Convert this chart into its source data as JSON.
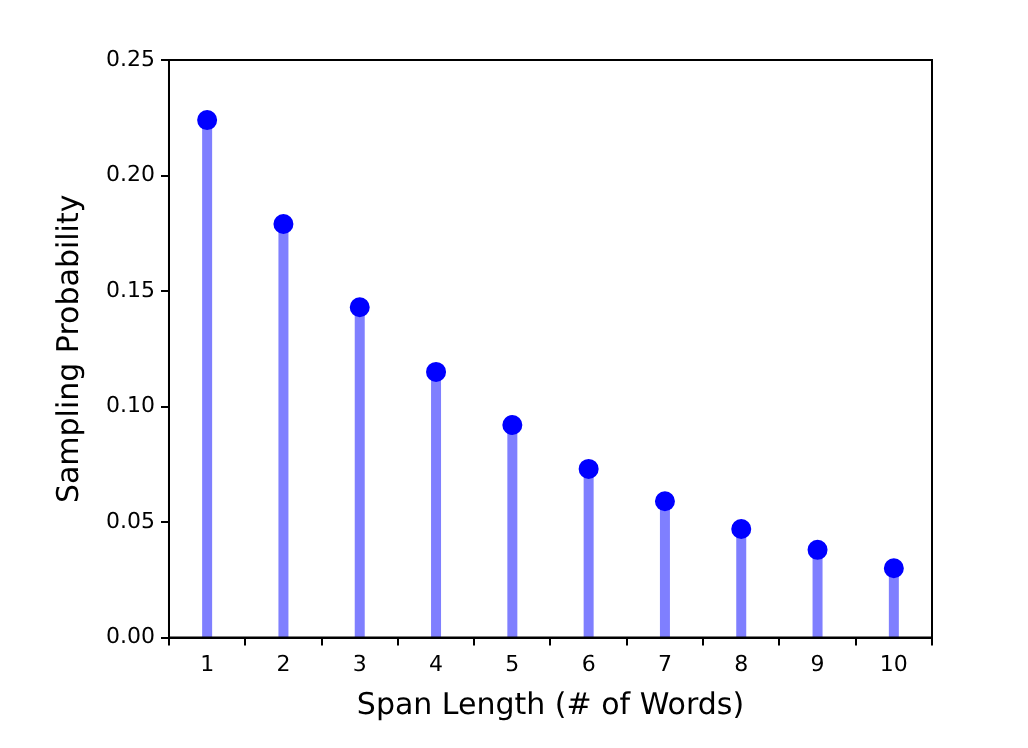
{
  "chart_data": {
    "type": "lollipop",
    "xlabel": "Span Length (# of Words)",
    "ylabel": "Sampling Probability",
    "categories": [
      "1",
      "2",
      "3",
      "4",
      "5",
      "6",
      "7",
      "8",
      "9",
      "10"
    ],
    "values": [
      0.224,
      0.179,
      0.143,
      0.115,
      0.092,
      0.073,
      0.059,
      0.047,
      0.038,
      0.03
    ],
    "color": "#0000ff",
    "marker": "circle",
    "ylim": [
      0,
      0.25
    ],
    "yticks": [
      {
        "value": 0,
        "label": "0.00"
      },
      {
        "value": 0.05,
        "label": "0.05"
      },
      {
        "value": 0.1,
        "label": "0.10"
      },
      {
        "value": 0.15,
        "label": "0.15"
      },
      {
        "value": 0.2,
        "label": "0.20"
      },
      {
        "value": 0.25,
        "label": "0.25"
      }
    ]
  }
}
